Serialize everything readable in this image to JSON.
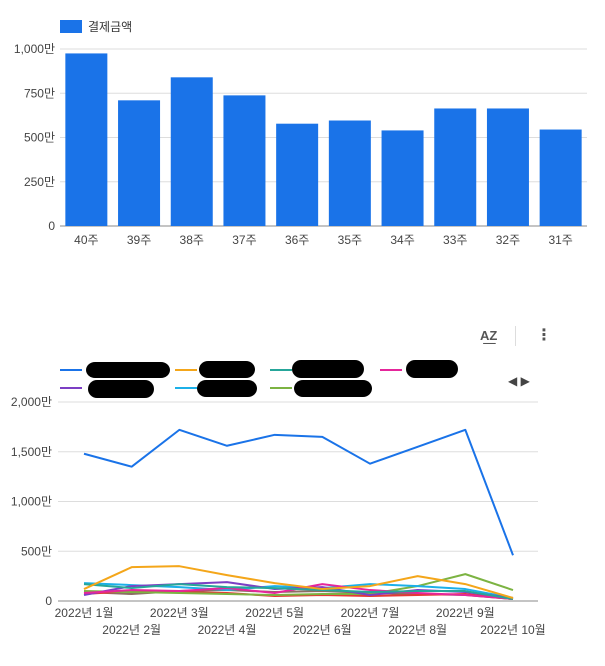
{
  "chart_data": [
    {
      "type": "bar",
      "legend": "결제금액",
      "legend_placement": "top-left",
      "color": "#1a73e8",
      "categories": [
        "40주",
        "39주",
        "38주",
        "37주",
        "36주",
        "35주",
        "34주",
        "33주",
        "32주",
        "31주"
      ],
      "values": [
        975,
        710,
        840,
        738,
        578,
        596,
        540,
        664,
        664,
        545
      ],
      "y_ticks": [
        "0",
        "250만",
        "500만",
        "750만",
        "1,000만"
      ],
      "ylim": [
        0,
        1000
      ],
      "grid": true
    },
    {
      "type": "line",
      "legend_placement": "top",
      "legend_pager": "◀ ▶",
      "x_ticks": [
        "2022년 1월",
        "2022년 2월",
        "2022년 3월",
        "2022년 4월",
        "2022년 5월",
        "2022년 6월",
        "2022년 7월",
        "2022년 8월",
        "2022년 9월",
        "2022년 10월"
      ],
      "y_ticks": [
        "0",
        "500만",
        "1,000만",
        "1,500만",
        "2,000만"
      ],
      "ylim": [
        0,
        2000
      ],
      "grid": true,
      "series": [
        {
          "color": "#1a73e8",
          "values": [
            1480,
            1350,
            1720,
            1560,
            1670,
            1650,
            1380,
            1550,
            1720,
            460
          ]
        },
        {
          "color": "#f4a61a",
          "values": [
            120,
            340,
            350,
            260,
            180,
            120,
            150,
            250,
            170,
            30
          ]
        },
        {
          "color": "#26a69a",
          "values": [
            170,
            130,
            170,
            140,
            130,
            110,
            90,
            100,
            100,
            20
          ]
        },
        {
          "color": "#e5269b",
          "values": [
            80,
            110,
            100,
            130,
            80,
            170,
            110,
            80,
            60,
            20
          ]
        },
        {
          "color": "#7c3fc4",
          "values": [
            60,
            150,
            170,
            190,
            120,
            140,
            60,
            110,
            90,
            30
          ]
        },
        {
          "color": "#1cb0e8",
          "values": [
            180,
            160,
            140,
            110,
            150,
            130,
            170,
            150,
            120,
            30
          ]
        },
        {
          "color": "#7cb342",
          "values": [
            100,
            90,
            80,
            70,
            60,
            70,
            70,
            150,
            270,
            110
          ]
        },
        {
          "color": "#e53935",
          "values": [
            70,
            100,
            90,
            80,
            50,
            60,
            50,
            60,
            70,
            20
          ]
        },
        {
          "color": "#8d6e63",
          "values": [
            90,
            70,
            100,
            110,
            90,
            100,
            80,
            70,
            60,
            20
          ]
        }
      ]
    }
  ]
}
